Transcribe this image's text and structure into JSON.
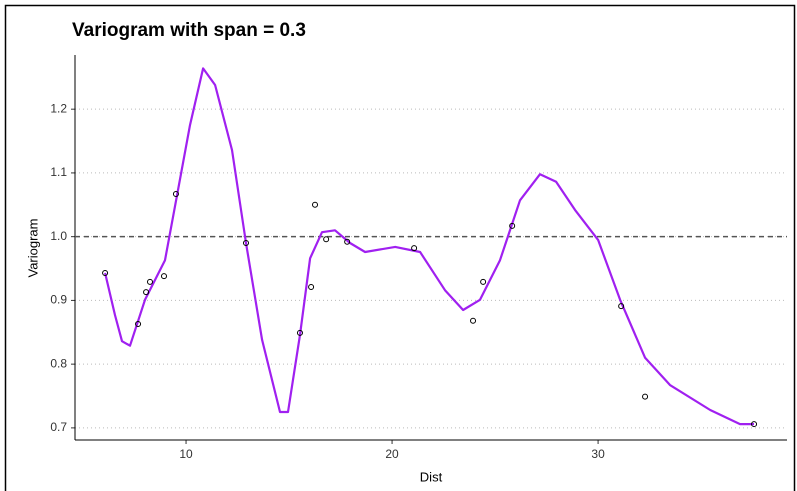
{
  "chart_data": {
    "type": "scatter",
    "title": "Variogram with span = 0.3",
    "x_label": "Dist",
    "y_label": "Variogram",
    "x": [
      6.07,
      7.67,
      8.06,
      8.25,
      8.93,
      9.51,
      12.91,
      15.53,
      16.07,
      16.26,
      16.8,
      17.82,
      21.07,
      23.93,
      24.42,
      25.83,
      31.12,
      32.28,
      37.57
    ],
    "values": [
      0.943,
      0.863,
      0.913,
      0.929,
      0.938,
      1.067,
      0.99,
      0.849,
      0.921,
      1.05,
      0.996,
      0.992,
      0.982,
      0.868,
      0.929,
      1.017,
      0.891,
      0.749,
      0.706
    ],
    "color": "#000000",
    "smooth": {
      "color": "#a020f0",
      "x": [
        6.07,
        6.55,
        6.89,
        7.28,
        8.01,
        8.98,
        9.61,
        10.19,
        10.83,
        11.41,
        12.23,
        12.91,
        13.69,
        14.56,
        14.95,
        15.53,
        16.02,
        16.6,
        17.23,
        17.96,
        18.69,
        20.15,
        21.36,
        22.57,
        23.45,
        24.27,
        25.24,
        26.21,
        27.18,
        27.96,
        28.88,
        30.0,
        31.07,
        32.28,
        33.5,
        35.44,
        36.89,
        37.57
      ],
      "values": [
        0.943,
        0.877,
        0.836,
        0.829,
        0.901,
        0.963,
        1.073,
        1.175,
        1.264,
        1.238,
        1.136,
        0.99,
        0.838,
        0.725,
        0.725,
        0.846,
        0.966,
        1.007,
        1.01,
        0.99,
        0.976,
        0.984,
        0.976,
        0.916,
        0.885,
        0.901,
        0.963,
        1.057,
        1.098,
        1.086,
        1.042,
        0.995,
        0.901,
        0.81,
        0.767,
        0.728,
        0.706,
        0.706
      ]
    },
    "reference_line": 1,
    "xlim": [
      4.61,
      39.17
    ],
    "xticks": [
      10,
      20,
      30
    ],
    "ylim": [
      0.681,
      1.285
    ],
    "yticks": [
      0.7,
      0.8,
      0.9,
      {
        "value": 1,
        "label": "1.0"
      },
      1.1,
      1.2
    ],
    "grid": true
  }
}
